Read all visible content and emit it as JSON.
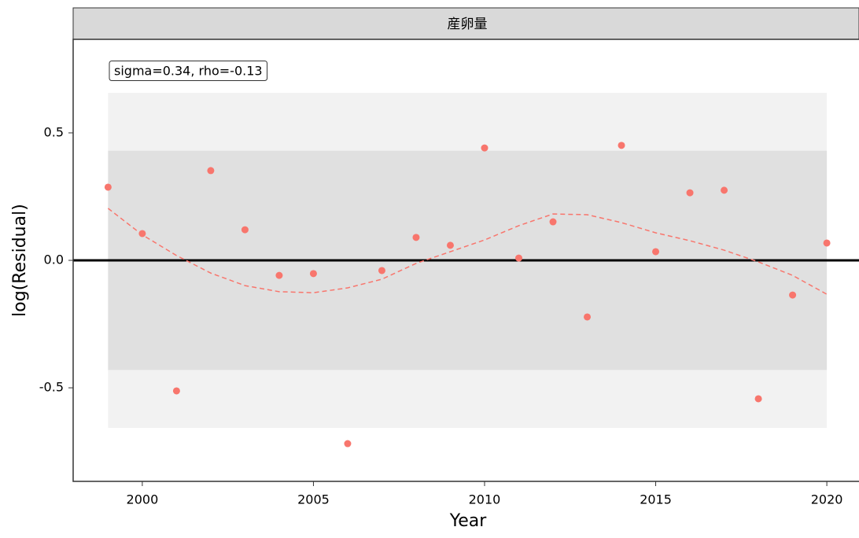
{
  "chart_data": {
    "type": "scatter",
    "strip_label": "産卵量",
    "annotation": "sigma=0.34, rho=-0.13",
    "x_label": "Year",
    "y_label": "log(Residual)",
    "x": [
      1999,
      2000,
      2001,
      2002,
      2003,
      2004,
      2005,
      2006,
      2007,
      2008,
      2009,
      2010,
      2011,
      2012,
      2013,
      2014,
      2015,
      2016,
      2017,
      2018,
      2019,
      2020
    ],
    "series": [
      {
        "color": "#f8766d",
        "style": "points",
        "values": [
          0.287,
          0.105,
          -0.512,
          0.352,
          0.12,
          -0.059,
          -0.052,
          -0.719,
          -0.04,
          0.09,
          0.059,
          0.441,
          0.009,
          0.151,
          -0.222,
          0.451,
          0.034,
          0.265,
          0.275,
          -0.543,
          -0.136,
          0.068
        ]
      },
      {
        "color": "#f8766d",
        "style": "dashed-line",
        "values": [
          0.204,
          0.1,
          0.019,
          -0.05,
          -0.099,
          -0.123,
          -0.127,
          -0.108,
          -0.074,
          -0.012,
          0.034,
          0.08,
          0.136,
          0.182,
          0.179,
          0.148,
          0.108,
          0.077,
          0.04,
          -0.006,
          -0.059,
          -0.133
        ]
      }
    ],
    "bands": [
      {
        "lower": -0.657,
        "upper": 0.657,
        "color": "#f2f2f2"
      },
      {
        "lower": -0.43,
        "upper": 0.43,
        "color": "#e0e0e0"
      }
    ],
    "hline": 0,
    "xlim": [
      1997.98,
      2020.94
    ],
    "ylim": [
      -0.867,
      0.867
    ],
    "xticks": [
      2000,
      2005,
      2010,
      2015,
      2020
    ],
    "yticks": [
      -0.5,
      {
        "value": 0,
        "label": "0.0"
      },
      0.5
    ]
  }
}
